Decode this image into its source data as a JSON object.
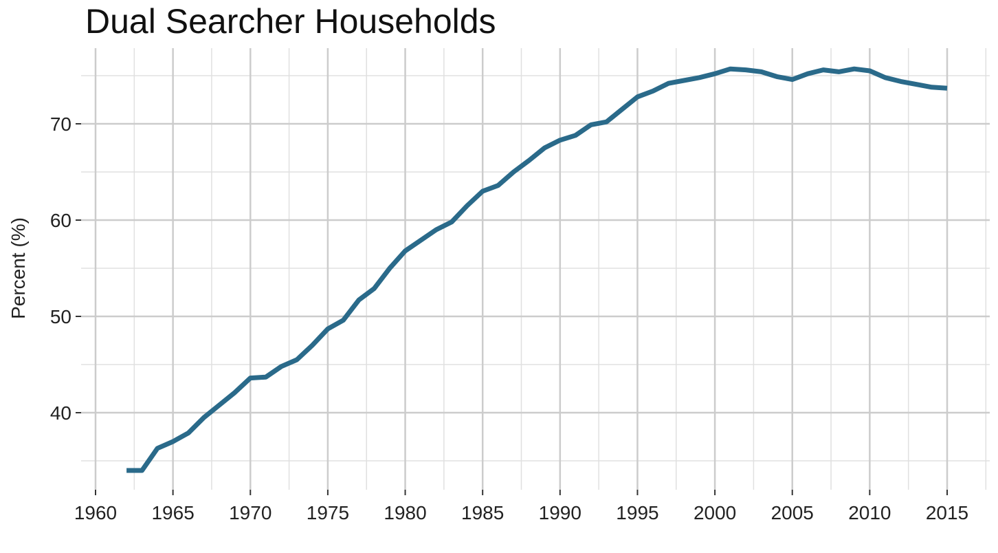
{
  "chart_data": {
    "type": "line",
    "title": "Dual Searcher Households",
    "xlabel": "",
    "ylabel": "Percent (%)",
    "xlim": [
      1960,
      2015
    ],
    "ylim": [
      33,
      76
    ],
    "x_ticks": [
      "1960",
      "1965",
      "1970",
      "1975",
      "1980",
      "1985",
      "1990",
      "1995",
      "2000",
      "2005",
      "2010",
      "2015"
    ],
    "y_ticks": [
      "40",
      "50",
      "60",
      "70"
    ],
    "grid": true,
    "legend": "none",
    "series": [
      {
        "color": "#2a6a8a",
        "x": [
          1962,
          1963,
          1964,
          1965,
          1966,
          1967,
          1968,
          1969,
          1970,
          1971,
          1972,
          1973,
          1974,
          1975,
          1976,
          1977,
          1978,
          1979,
          1980,
          1981,
          1982,
          1983,
          1984,
          1985,
          1986,
          1987,
          1988,
          1989,
          1990,
          1991,
          1992,
          1993,
          1994,
          1995,
          1996,
          1997,
          1998,
          1999,
          2000,
          2001,
          2002,
          2003,
          2004,
          2005,
          2006,
          2007,
          2008,
          2009,
          2010,
          2011,
          2012,
          2013,
          2014,
          2015
        ],
        "values": [
          34.0,
          34.0,
          36.3,
          37.0,
          37.9,
          39.5,
          40.8,
          42.1,
          43.6,
          43.7,
          44.8,
          45.5,
          47.0,
          48.7,
          49.6,
          51.7,
          52.9,
          55.0,
          56.8,
          57.9,
          59.0,
          59.8,
          61.5,
          63.0,
          63.6,
          65.0,
          66.2,
          67.5,
          68.3,
          68.8,
          69.9,
          70.2,
          71.5,
          72.8,
          73.4,
          74.2,
          74.5,
          74.8,
          75.2,
          75.7,
          75.6,
          75.4,
          74.9,
          74.6,
          75.2,
          75.6,
          75.4,
          75.7,
          75.5,
          74.8,
          74.4,
          74.1,
          73.8,
          73.7
        ]
      }
    ]
  }
}
